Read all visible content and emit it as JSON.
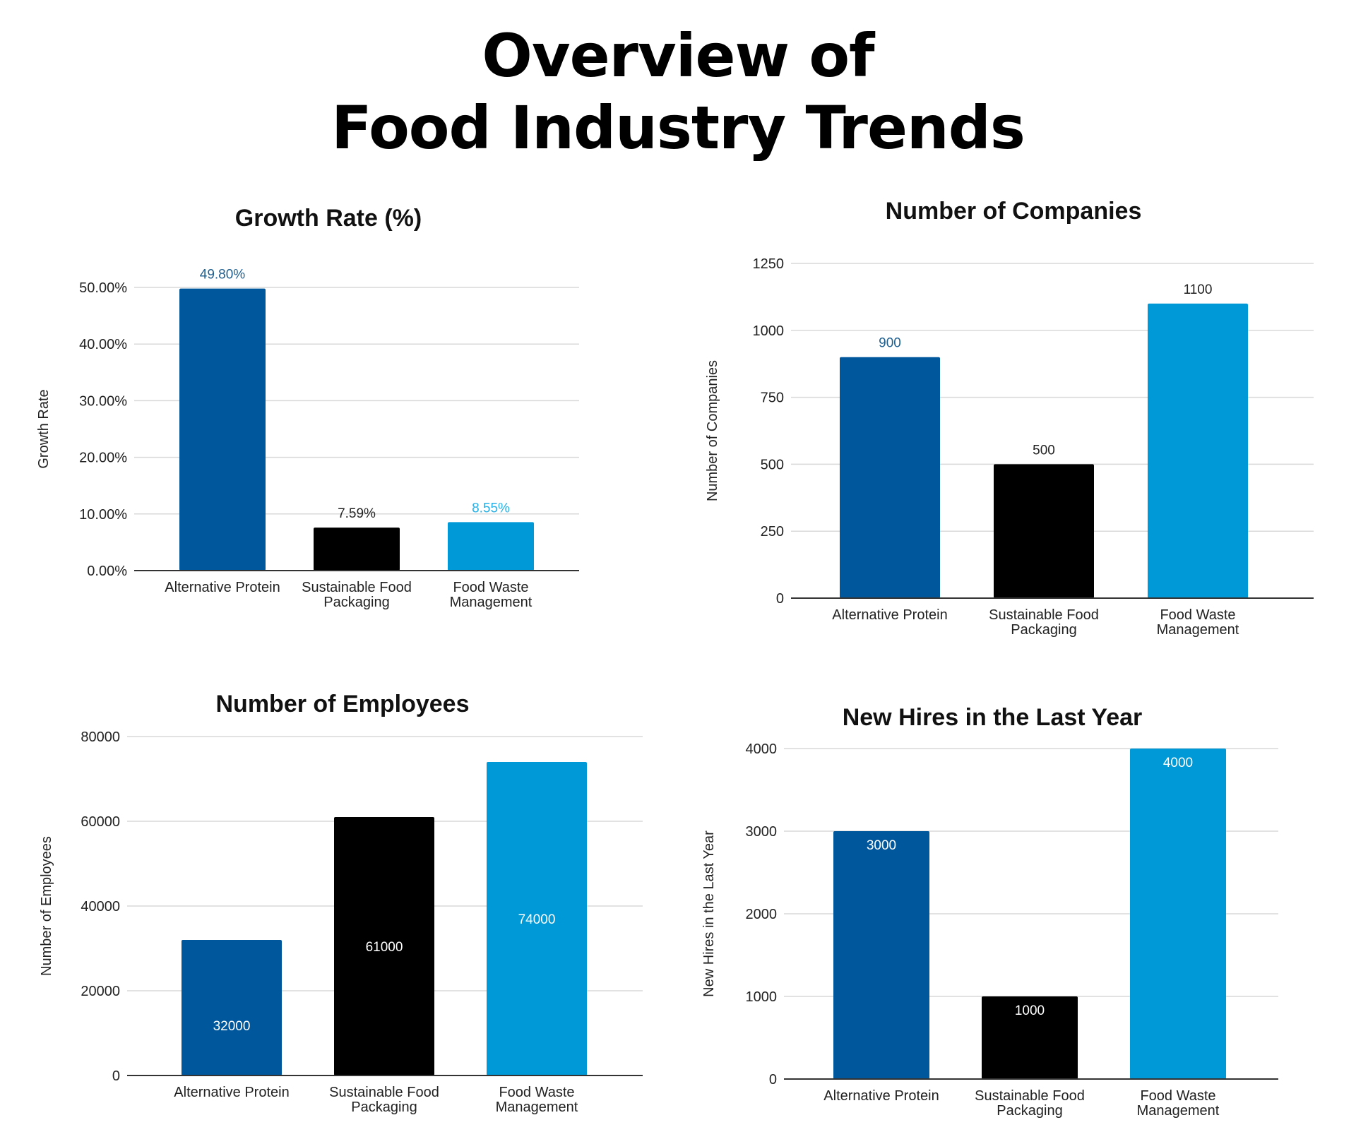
{
  "title_lines": [
    "Overview of",
    "Food Industry Trends"
  ],
  "colors": {
    "alternative_protein": "#00579b",
    "sustainable_packaging": "#000000",
    "food_waste": "#0099d8",
    "label_dark": "#1f5f8f",
    "label_light": "#2ab0e6"
  },
  "chart_data": [
    {
      "type": "bar",
      "title": "Growth Rate (%)",
      "ylabel": "Growth Rate",
      "xlabel": "",
      "categories": [
        "Alternative Protein",
        "Sustainable Food Packaging",
        "Food Waste Management"
      ],
      "values": [
        49.8,
        7.59,
        8.55
      ],
      "data_labels": [
        "49.80%",
        "7.59%",
        "8.55%"
      ],
      "yticks": [
        "0.00%",
        "10.00%",
        "20.00%",
        "30.00%",
        "40.00%",
        "50.00%"
      ],
      "ylim": [
        0,
        50
      ],
      "grid": true,
      "label_position": "above"
    },
    {
      "type": "bar",
      "title": "Number of Companies",
      "ylabel": "Number of Companies",
      "xlabel": "",
      "categories": [
        "Alternative Protein",
        "Sustainable Food Packaging",
        "Food Waste Management"
      ],
      "values": [
        900,
        500,
        1100
      ],
      "data_labels": [
        "900",
        "500",
        "1100"
      ],
      "yticks": [
        "0",
        "250",
        "500",
        "750",
        "1000",
        "1250"
      ],
      "ylim": [
        0,
        1250
      ],
      "grid": true,
      "label_position": "above"
    },
    {
      "type": "bar",
      "title": "Number of Employees",
      "ylabel": "Number of Employees",
      "xlabel": "",
      "categories": [
        "Alternative Protein",
        "Sustainable Food Packaging",
        "Food Waste Management"
      ],
      "values": [
        32000,
        61000,
        74000
      ],
      "data_labels": [
        "32000",
        "61000",
        "74000"
      ],
      "yticks": [
        "0",
        "20000",
        "40000",
        "60000",
        "80000"
      ],
      "ylim": [
        0,
        80000
      ],
      "grid": true,
      "label_position": "center"
    },
    {
      "type": "bar",
      "title": "New Hires in the Last Year",
      "ylabel": "New Hires in the Last Year",
      "xlabel": "",
      "categories": [
        "Alternative Protein",
        "Sustainable Food Packaging",
        "Food Waste Management"
      ],
      "values": [
        3000,
        1000,
        4000
      ],
      "data_labels": [
        "3000",
        "1000",
        "4000"
      ],
      "yticks": [
        "0",
        "1000",
        "2000",
        "3000",
        "4000"
      ],
      "ylim": [
        0,
        4000
      ],
      "grid": true,
      "label_position": "inside-top"
    }
  ]
}
